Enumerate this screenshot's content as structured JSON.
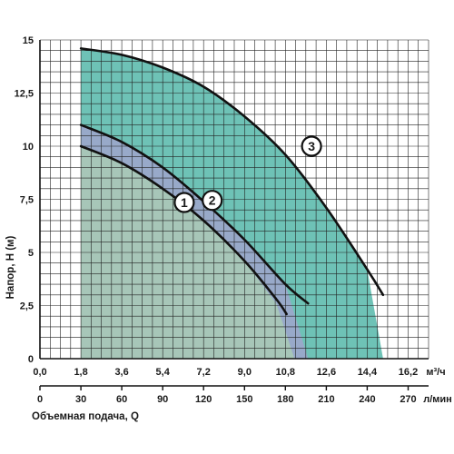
{
  "chart_data": {
    "type": "line",
    "title": "",
    "ylabel": "Напор, H (м)",
    "xlabel": "Объемная подача, Q",
    "x_unit_primary": "м³/ч",
    "x_unit_secondary": "л/мин",
    "xlim": [
      0,
      17.1
    ],
    "ylim": [
      0,
      15
    ],
    "grid": true,
    "yticks": [
      0,
      2.5,
      5,
      7.5,
      10,
      12.5,
      15
    ],
    "ytick_labels": [
      "0",
      "2,5",
      "5",
      "7,5",
      "10",
      "12,5",
      "15"
    ],
    "xticks": [
      0,
      1.8,
      3.6,
      5.4,
      7.2,
      9.0,
      10.8,
      12.6,
      14.4,
      16.2
    ],
    "xtick_labels": [
      "0,0",
      "1,8",
      "3,6",
      "5,4",
      "7,2",
      "9,0",
      "10,8",
      "12,6",
      "14,4",
      "16,2"
    ],
    "xticks_secondary": [
      0,
      30,
      60,
      90,
      120,
      150,
      180,
      210,
      240,
      270
    ],
    "xtick_labels_secondary": [
      "0",
      "30",
      "60",
      "90",
      "120",
      "150",
      "180",
      "210",
      "240",
      "270"
    ],
    "series": [
      {
        "name": "1",
        "color": "#a7c6b8",
        "x": [
          1.8,
          3.6,
          5.4,
          7.2,
          9.0,
          10.4,
          11.2
        ],
        "y": [
          10,
          9.2,
          8.0,
          6.5,
          4.6,
          2.6,
          0
        ],
        "curve_x": [
          1.8,
          3.6,
          5.4,
          7.2,
          9.0,
          10.4,
          10.85
        ],
        "curve_y": [
          10,
          9.2,
          8.0,
          6.5,
          4.6,
          2.8,
          2.1
        ]
      },
      {
        "name": "2",
        "color": "#98a9c9",
        "x": [
          1.8,
          3.6,
          5.4,
          7.2,
          9.0,
          10.8,
          11.8
        ],
        "y": [
          11,
          10.2,
          9.0,
          7.4,
          5.6,
          3.5,
          0
        ],
        "curve_x": [
          1.8,
          3.6,
          5.4,
          7.2,
          9.0,
          10.8,
          11.8
        ],
        "curve_y": [
          11,
          10.2,
          9.0,
          7.4,
          5.6,
          3.5,
          2.6
        ]
      },
      {
        "name": "3",
        "color": "#6ec2b6",
        "x": [
          1.8,
          3.6,
          5.4,
          7.2,
          9.0,
          10.8,
          12.6,
          14.4,
          15.1
        ],
        "y": [
          14.6,
          14.3,
          13.7,
          12.8,
          11.4,
          9.6,
          7.1,
          4.2,
          0
        ],
        "curve_x": [
          1.8,
          3.6,
          5.4,
          7.2,
          9.0,
          10.8,
          12.6,
          14.4,
          15.1
        ],
        "curve_y": [
          14.6,
          14.3,
          13.7,
          12.8,
          11.4,
          9.6,
          7.1,
          4.2,
          3.0
        ]
      }
    ],
    "label_positions": {
      "1": [
        6.35,
        7.35
      ],
      "2": [
        7.58,
        7.45
      ],
      "3": [
        11.95,
        10.0
      ]
    }
  }
}
